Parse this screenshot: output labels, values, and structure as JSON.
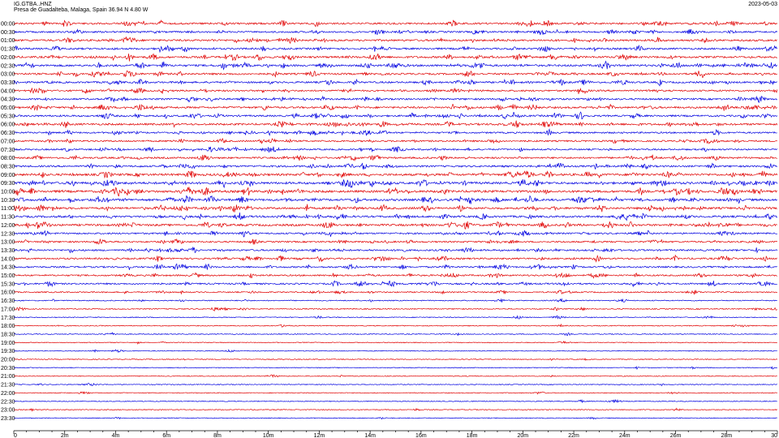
{
  "header": {
    "station": "IG.GTBA..HNZ",
    "location": "Presa de Guadalteba, Malaga, Spain  36.94 N 4.80 W",
    "date": "2023-05-03"
  },
  "chart_data": {
    "type": "line",
    "title": "IG.GTBA..HNZ",
    "subtitle": "Presa de Guadalteba, Malaga, Spain  36.94 N 4.80 W",
    "date": "2023-05-03",
    "xlabel": "",
    "ylabel": "",
    "xlim_minutes": [
      0,
      30
    ],
    "x_tick_labels": [
      "0",
      "2m",
      "4m",
      "6m",
      "8m",
      "10m",
      "12m",
      "14m",
      "16m",
      "18m",
      "20m",
      "22m",
      "24m",
      "26m",
      "28m",
      "30"
    ],
    "row_labels": [
      "00:00",
      "00:30",
      "01:00",
      "01:30",
      "02:00",
      "02:30",
      "03:00",
      "03:30",
      "04:00",
      "04:30",
      "05:00",
      "05:30",
      "06:00",
      "06:30",
      "07:00",
      "07:30",
      "08:00",
      "08:30",
      "09:00",
      "09:30",
      "10:00",
      "10:30",
      "11:00",
      "11:30",
      "12:00",
      "12:30",
      "13:00",
      "13:30",
      "14:00",
      "14:30",
      "15:00",
      "15:30",
      "16:00",
      "16:30",
      "17:00",
      "17:30",
      "18:00",
      "18:30",
      "19:00",
      "19:30",
      "20:00",
      "20:30",
      "21:00",
      "21:30",
      "22:00",
      "22:30",
      "23:00",
      "23:30"
    ],
    "colors": {
      "even_rows": "#e00000",
      "odd_rows": "#0000e0",
      "axis": "#000000"
    },
    "relative_activity": [
      0.7,
      0.6,
      0.75,
      0.7,
      0.8,
      0.85,
      0.7,
      0.7,
      0.6,
      0.65,
      0.75,
      0.7,
      0.8,
      0.6,
      0.6,
      0.55,
      0.65,
      0.7,
      0.95,
      1.0,
      1.0,
      0.95,
      0.85,
      0.8,
      0.85,
      0.6,
      0.55,
      0.65,
      0.6,
      0.6,
      0.55,
      0.55,
      0.35,
      0.2,
      0.2,
      0.12,
      0.12,
      0.12,
      0.08,
      0.08,
      0.08,
      0.08,
      0.08,
      0.08,
      0.08,
      0.08,
      0.08,
      0.08
    ],
    "grid": false,
    "legend": "none"
  }
}
